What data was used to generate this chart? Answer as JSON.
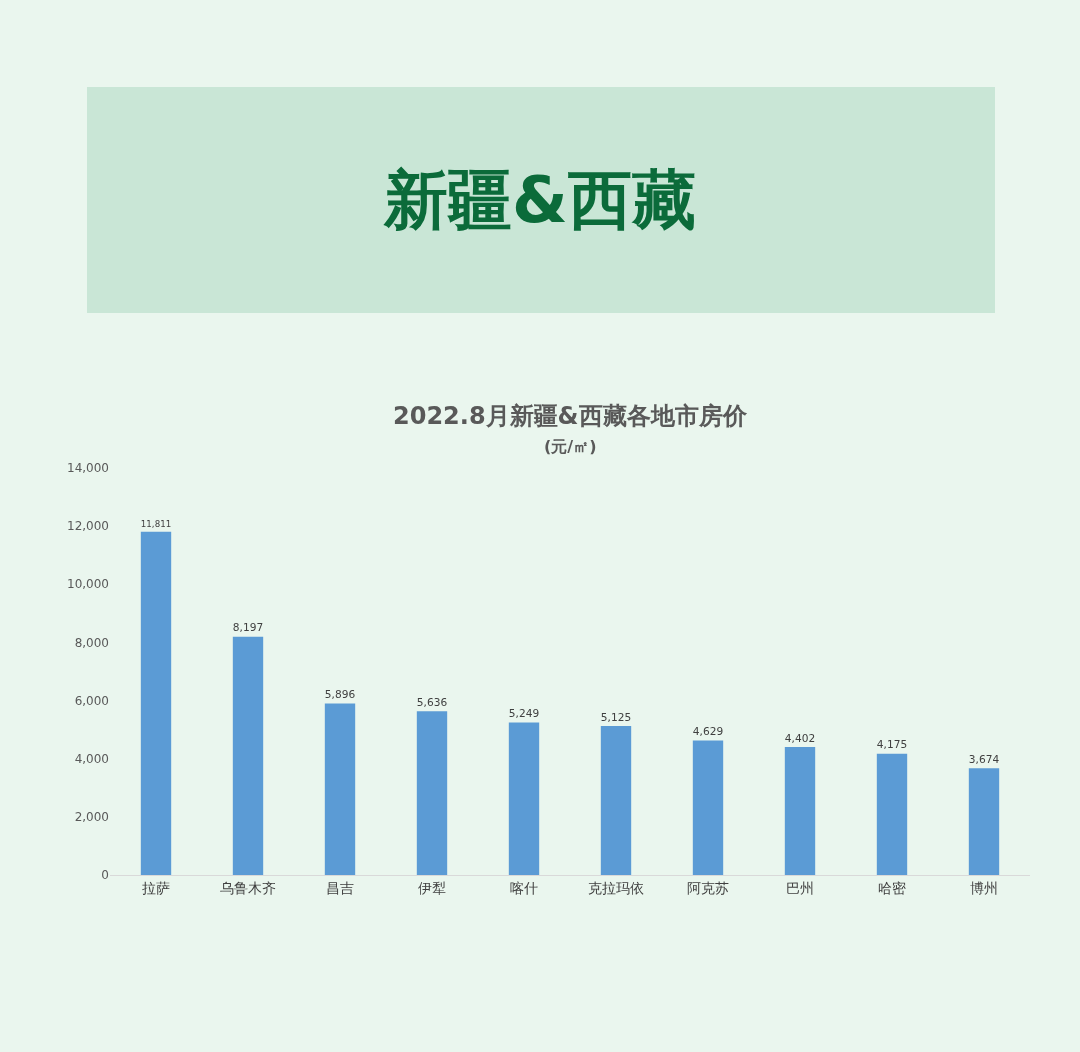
{
  "chart_data": {
    "type": "bar",
    "title": "新疆&西藏",
    "subtitle": "2022.8月新疆&西藏各地市房价",
    "annotations": [
      "(元/㎡)"
    ],
    "categories": [
      "拉萨",
      "乌鲁木齐",
      "昌吉",
      "伊犁",
      "喀什",
      "克拉玛依",
      "阿克苏",
      "巴州",
      "哈密",
      "博州"
    ],
    "values": [
      11811,
      8197,
      5896,
      5636,
      5249,
      5125,
      4629,
      4402,
      4175,
      3674
    ],
    "value_labels": [
      "11,811",
      "8,197",
      "5,896",
      "5,636",
      "5,249",
      "5,125",
      "4,629",
      "4,402",
      "4,175",
      "3,674"
    ],
    "color": "#5b9bd5",
    "ylim": [
      0,
      14000
    ],
    "yticks": [
      0,
      {
        "value": 2000,
        "label": "2,000"
      },
      {
        "value": 4000,
        "label": "4,000"
      },
      {
        "value": 6000,
        "label": "6,000"
      },
      {
        "value": 8000,
        "label": "8,000"
      },
      {
        "value": 10000,
        "label": "10,000"
      },
      {
        "value": 12000,
        "label": "12,000"
      },
      {
        "value": 14000,
        "label": "14,000"
      }
    ],
    "grid": false,
    "legend": false
  }
}
